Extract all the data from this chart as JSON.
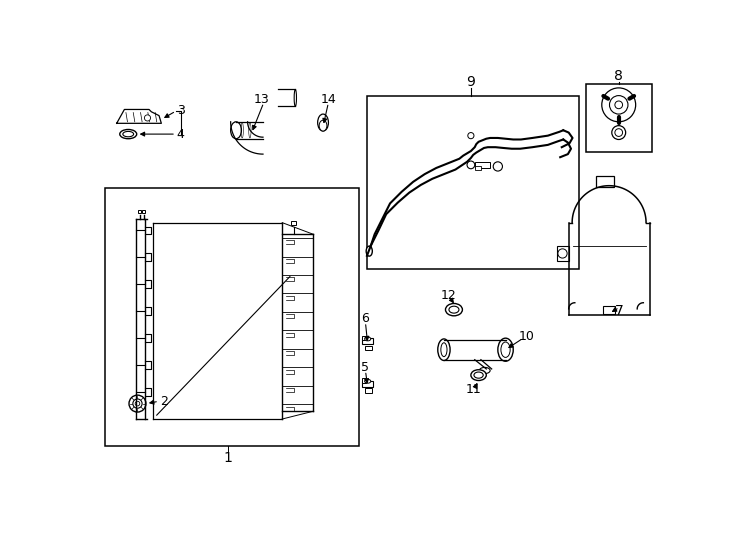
{
  "bg_color": "#ffffff",
  "line_color": "#000000",
  "lw": 1.0
}
